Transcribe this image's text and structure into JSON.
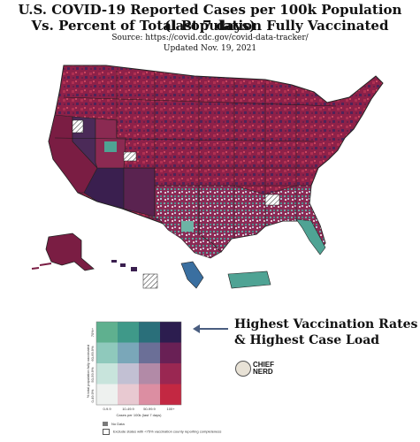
{
  "header": {
    "title_line1": "U.S. COVID-19 Reported Cases per 100k Population (last 7 days)",
    "title_line2": "Vs. Percent of Total Population Fully Vaccinated",
    "source": "Source: https://covid.cdc.gov/covid-data-tracker/",
    "updated": "Updated Nov. 19, 2021"
  },
  "colors": {
    "highest_case_low_vax": "#7a1d43",
    "high_case": "#a1234a",
    "mid_case": "#4b2a58",
    "deep_purple": "#3a1f4f",
    "teal": "#4fa394",
    "pink": "#e07c91",
    "red": "#c8283f"
  },
  "legend": {
    "y_axis_label": "% total population fully vaccinated",
    "x_axis_label": "Cases per 100k (last 7 days)",
    "x_ticks": [
      "0-9.9",
      "10-49.9",
      "50-99.9",
      "100+"
    ],
    "y_ticks": [
      "0-49.9%",
      "50-59.9%",
      "60-69.9%",
      "70%+"
    ],
    "grid_colors": [
      [
        "#5fb08f",
        "#3f9989",
        "#2a6f7a",
        "#2c1d4f"
      ],
      [
        "#8fc9bc",
        "#7aa7b9",
        "#6b6f97",
        "#692055"
      ],
      [
        "#c8e4dc",
        "#c2c0d3",
        "#b28aa7",
        "#9a2752"
      ],
      [
        "#eef1ef",
        "#e8c9d1",
        "#dc8ea2",
        "#c32842"
      ]
    ],
    "no_data_label": "No Data",
    "exclude_label": "Exclude states with <75% vaccination county reporting completeness"
  },
  "callout": {
    "line1": "Highest Vaccination Rates",
    "line2": "& Highest Case Load"
  },
  "brand": {
    "line1": "CHIEF",
    "line2": "NERD"
  }
}
